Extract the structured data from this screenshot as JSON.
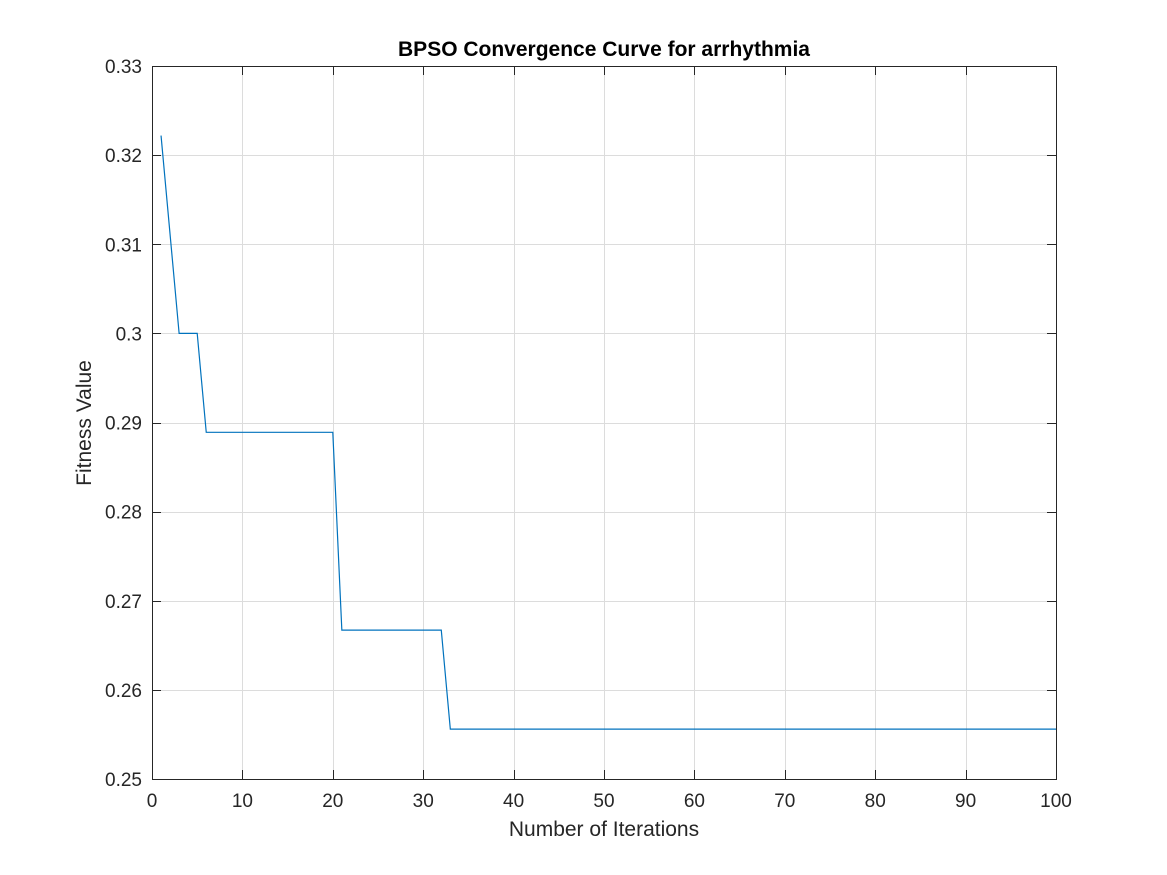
{
  "chart_data": {
    "type": "line",
    "title": "BPSO Convergence Curve for arrhythmia",
    "xlabel": "Number of Iterations",
    "ylabel": "Fitness Value",
    "xlim": [
      0,
      100
    ],
    "ylim": [
      0.25,
      0.33
    ],
    "xticks": [
      0,
      10,
      20,
      30,
      40,
      50,
      60,
      70,
      80,
      90,
      100
    ],
    "xtick_labels": [
      "0",
      "10",
      "20",
      "30",
      "40",
      "50",
      "60",
      "70",
      "80",
      "90",
      "100"
    ],
    "yticks": [
      0.25,
      0.26,
      0.27,
      0.28,
      0.29,
      0.3,
      0.31,
      0.32,
      0.33
    ],
    "ytick_labels": [
      "0.25",
      "0.26",
      "0.27",
      "0.28",
      "0.29",
      "0.3",
      "0.31",
      "0.32",
      "0.33"
    ],
    "grid": true,
    "legend": "none",
    "series": [
      {
        "color": "#0072bd",
        "x": [
          1,
          3,
          5,
          6,
          20,
          21,
          32,
          33,
          100
        ],
        "y": [
          0.3222,
          0.3,
          0.3,
          0.2889,
          0.2889,
          0.2667,
          0.2667,
          0.2556,
          0.2556
        ]
      }
    ]
  }
}
